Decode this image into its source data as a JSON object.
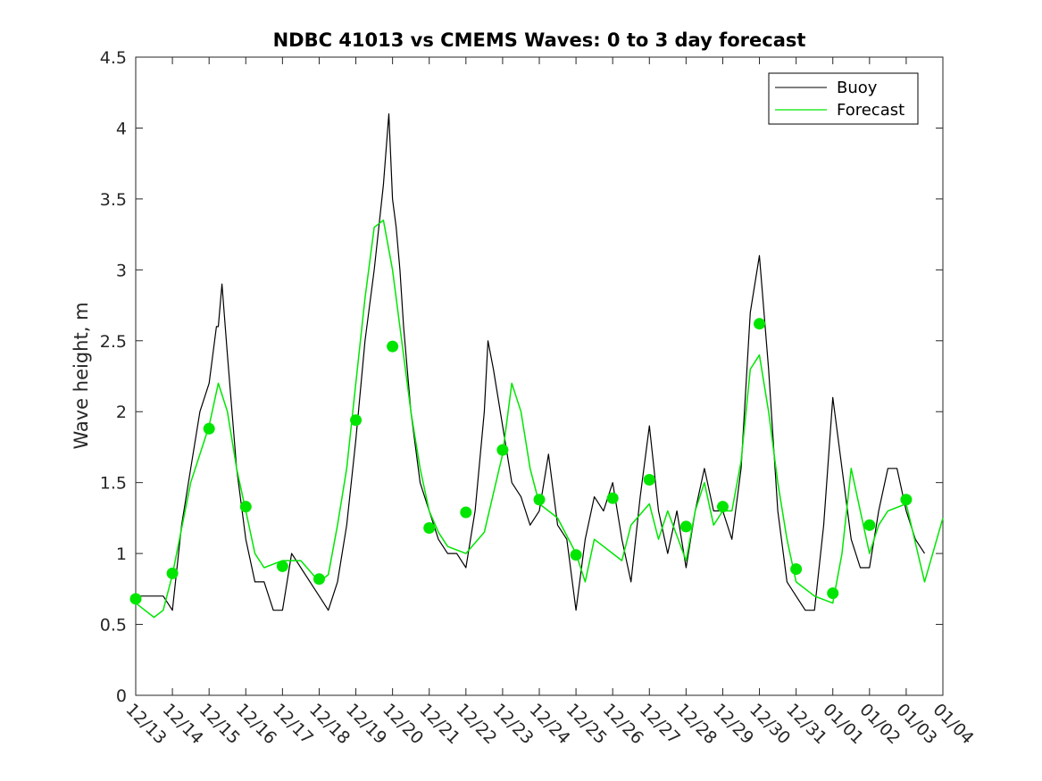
{
  "chart_data": {
    "type": "line",
    "title": "NDBC 41013 vs CMEMS Waves: 0 to 3 day forecast",
    "xlabel": "",
    "ylabel": "Wave height, m",
    "ylim": [
      0,
      4.5
    ],
    "xlim": [
      0,
      22
    ],
    "yticks": [
      0,
      0.5,
      1,
      1.5,
      2,
      2.5,
      3,
      3.5,
      4,
      4.5
    ],
    "ytick_labels": [
      "0",
      "0.5",
      "1",
      "1.5",
      "2",
      "2.5",
      "3",
      "3.5",
      "4",
      "4.5"
    ],
    "xtick_labels": [
      "12/13",
      "12/14",
      "12/15",
      "12/16",
      "12/17",
      "12/18",
      "12/19",
      "12/20",
      "12/21",
      "12/22",
      "12/23",
      "12/24",
      "12/25",
      "12/26",
      "12/27",
      "12/28",
      "12/29",
      "12/30",
      "12/31",
      "01/01",
      "01/02",
      "01/03",
      "01/04"
    ],
    "grid": false,
    "legend_position": "top-right",
    "colors": {
      "buoy": "#000000",
      "forecast": "#00e600"
    },
    "series": [
      {
        "name": "Buoy",
        "x": [
          0.0,
          0.25,
          0.5,
          0.75,
          1.0,
          1.25,
          1.5,
          1.75,
          2.0,
          2.1,
          2.2,
          2.25,
          2.35,
          2.5,
          2.75,
          3.0,
          3.25,
          3.5,
          3.75,
          4.0,
          4.25,
          4.5,
          4.75,
          5.0,
          5.25,
          5.5,
          5.75,
          6.0,
          6.25,
          6.5,
          6.75,
          6.9,
          7.0,
          7.1,
          7.2,
          7.3,
          7.5,
          7.75,
          8.0,
          8.25,
          8.5,
          8.75,
          9.0,
          9.25,
          9.5,
          9.6,
          9.75,
          10.0,
          10.25,
          10.5,
          10.75,
          11.0,
          11.25,
          11.5,
          11.75,
          12.0,
          12.25,
          12.5,
          12.75,
          13.0,
          13.25,
          13.5,
          13.75,
          14.0,
          14.25,
          14.5,
          14.75,
          15.0,
          15.25,
          15.5,
          15.75,
          16.0,
          16.25,
          16.5,
          16.75,
          17.0,
          17.25,
          17.5,
          17.75,
          18.0,
          18.25,
          18.5,
          18.75,
          19.0,
          19.25,
          19.5,
          19.75,
          20.0,
          20.25,
          20.5,
          20.75,
          21.0,
          21.25,
          21.5
        ],
        "values": [
          0.7,
          0.7,
          0.7,
          0.7,
          0.6,
          1.2,
          1.6,
          2.0,
          2.2,
          2.4,
          2.6,
          2.6,
          2.9,
          2.4,
          1.6,
          1.1,
          0.8,
          0.8,
          0.6,
          0.6,
          1.0,
          0.9,
          0.8,
          0.7,
          0.6,
          0.8,
          1.2,
          1.8,
          2.5,
          3.0,
          3.6,
          4.1,
          3.5,
          3.3,
          3.0,
          2.6,
          2.0,
          1.5,
          1.3,
          1.1,
          1.0,
          1.0,
          0.9,
          1.3,
          2.0,
          2.5,
          2.3,
          1.9,
          1.5,
          1.4,
          1.2,
          1.3,
          1.7,
          1.2,
          1.1,
          0.6,
          1.1,
          1.4,
          1.3,
          1.5,
          1.1,
          0.8,
          1.4,
          1.9,
          1.3,
          1.0,
          1.3,
          0.9,
          1.3,
          1.6,
          1.3,
          1.3,
          1.1,
          1.6,
          2.7,
          3.1,
          2.3,
          1.3,
          0.8,
          0.7,
          0.6,
          0.6,
          1.2,
          2.1,
          1.6,
          1.1,
          0.9,
          0.9,
          1.3,
          1.6,
          1.6,
          1.3,
          1.1,
          1.0
        ]
      },
      {
        "name": "Forecast",
        "x": [
          0.0,
          0.25,
          0.5,
          0.75,
          1.0,
          1.5,
          2.0,
          2.25,
          2.5,
          2.75,
          3.0,
          3.25,
          3.5,
          4.0,
          4.5,
          5.0,
          5.25,
          5.5,
          5.75,
          6.0,
          6.25,
          6.5,
          6.75,
          7.0,
          7.25,
          7.5,
          7.75,
          8.0,
          8.25,
          8.5,
          9.0,
          9.5,
          10.0,
          10.25,
          10.5,
          10.75,
          11.0,
          11.25,
          11.5,
          12.0,
          12.25,
          12.5,
          13.0,
          13.25,
          13.5,
          14.0,
          14.25,
          14.5,
          15.0,
          15.25,
          15.5,
          15.75,
          16.0,
          16.25,
          16.5,
          16.75,
          17.0,
          17.25,
          17.5,
          17.75,
          18.0,
          18.5,
          19.0,
          19.25,
          19.5,
          19.75,
          20.0,
          20.25,
          20.5,
          21.0,
          21.5,
          22.0
        ],
        "values": [
          0.65,
          0.6,
          0.55,
          0.6,
          0.85,
          1.5,
          1.9,
          2.2,
          2.0,
          1.6,
          1.3,
          1.0,
          0.9,
          0.95,
          0.95,
          0.8,
          0.85,
          1.2,
          1.6,
          2.2,
          2.8,
          3.3,
          3.35,
          3.0,
          2.5,
          2.0,
          1.6,
          1.3,
          1.15,
          1.05,
          1.0,
          1.15,
          1.7,
          2.2,
          2.0,
          1.6,
          1.35,
          1.3,
          1.25,
          1.0,
          0.8,
          1.1,
          1.0,
          0.95,
          1.2,
          1.35,
          1.1,
          1.3,
          0.95,
          1.3,
          1.5,
          1.2,
          1.3,
          1.3,
          1.65,
          2.3,
          2.4,
          2.0,
          1.5,
          1.1,
          0.8,
          0.7,
          0.65,
          1.0,
          1.6,
          1.3,
          1.0,
          1.2,
          1.3,
          1.35,
          0.8,
          1.25
        ]
      }
    ],
    "markers": {
      "x": [
        0,
        1,
        2,
        3,
        4,
        5,
        6,
        7,
        8,
        9,
        10,
        11,
        12,
        13,
        14,
        15,
        16,
        17,
        18,
        19,
        20,
        21
      ],
      "values": [
        0.68,
        0.86,
        1.88,
        1.33,
        0.91,
        0.82,
        1.94,
        2.46,
        1.18,
        1.29,
        1.73,
        1.38,
        0.99,
        1.39,
        1.52,
        1.19,
        1.33,
        2.62,
        0.89,
        0.72,
        1.2,
        1.38
      ]
    }
  }
}
